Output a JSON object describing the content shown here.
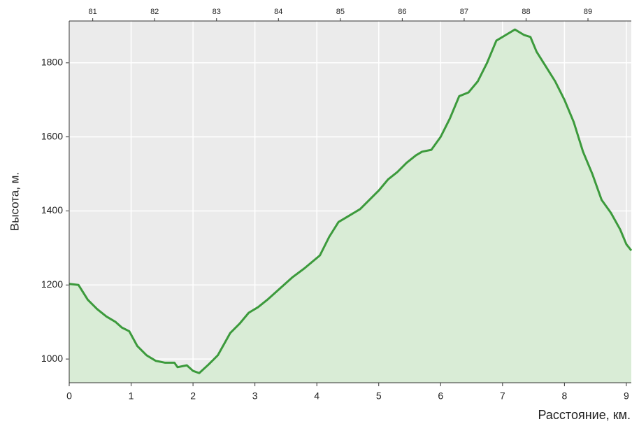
{
  "chart_data": {
    "type": "area",
    "x": [
      0,
      0.15,
      0.3,
      0.45,
      0.6,
      0.75,
      0.85,
      0.97,
      1.1,
      1.25,
      1.4,
      1.55,
      1.7,
      1.75,
      1.9,
      2.0,
      2.1,
      2.25,
      2.4,
      2.5,
      2.6,
      2.75,
      2.9,
      3.05,
      3.2,
      3.4,
      3.6,
      3.8,
      4.05,
      4.2,
      4.35,
      4.5,
      4.7,
      4.85,
      5.0,
      5.15,
      5.3,
      5.45,
      5.6,
      5.7,
      5.85,
      6.0,
      6.15,
      6.3,
      6.45,
      6.6,
      6.75,
      6.9,
      7.05,
      7.2,
      7.35,
      7.45,
      7.55,
      7.7,
      7.85,
      8.0,
      8.15,
      8.3,
      8.45,
      8.6,
      8.75,
      8.9,
      9.0,
      9.08
    ],
    "series": [
      {
        "color": "#3c9a3c",
        "fill": "#d9ecd6",
        "values": [
          1203,
          1200,
          1160,
          1135,
          1115,
          1100,
          1085,
          1075,
          1035,
          1010,
          995,
          990,
          990,
          978,
          983,
          968,
          962,
          985,
          1010,
          1040,
          1070,
          1095,
          1125,
          1140,
          1160,
          1190,
          1220,
          1245,
          1280,
          1330,
          1370,
          1385,
          1405,
          1430,
          1455,
          1485,
          1505,
          1530,
          1550,
          1560,
          1565,
          1600,
          1650,
          1710,
          1720,
          1750,
          1800,
          1860,
          1875,
          1890,
          1875,
          1870,
          1830,
          1790,
          1750,
          1700,
          1640,
          1560,
          1500,
          1430,
          1395,
          1350,
          1310,
          1293
        ]
      }
    ],
    "xlim": [
      0,
      9.08
    ],
    "xticks": [
      0,
      1,
      2,
      3,
      4,
      5,
      6,
      7,
      8,
      9
    ],
    "x2ticks": [
      {
        "value": 0.38,
        "label": "81"
      },
      {
        "value": 1.38,
        "label": "82"
      },
      {
        "value": 2.38,
        "label": "83"
      },
      {
        "value": 3.38,
        "label": "84"
      },
      {
        "value": 4.38,
        "label": "85"
      },
      {
        "value": 5.38,
        "label": "86"
      },
      {
        "value": 6.38,
        "label": "87"
      },
      {
        "value": 7.38,
        "label": "88"
      },
      {
        "value": 8.38,
        "label": "89"
      }
    ],
    "ylim": [
      936,
      1913
    ],
    "yticks": [
      1000,
      1200,
      1400,
      1600,
      1800
    ],
    "xlabel": "Расстояние, км.",
    "ylabel": "Высота, м.",
    "grid": true
  }
}
